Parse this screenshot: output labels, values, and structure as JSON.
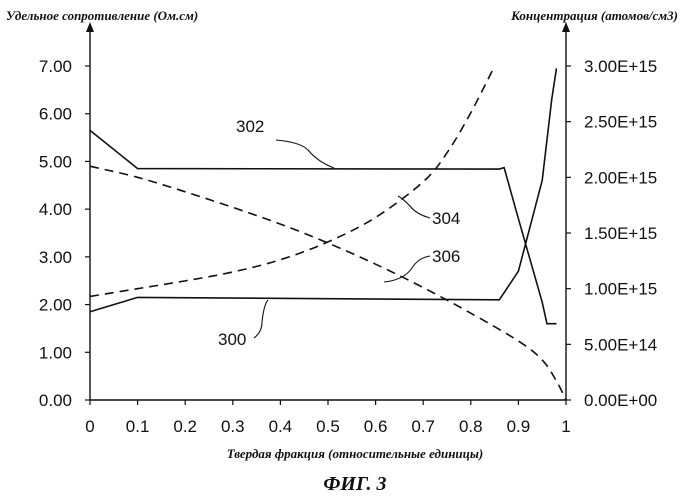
{
  "chart_data": {
    "type": "line",
    "xlabel": "Твердая фракция (относительные единицы)",
    "ylabel_left": "Удельное сопротивление (Ом.см)",
    "ylabel_right": "Концентрация (атомов/см3)",
    "caption": "ФИГ. 3",
    "x_ticks": [
      "0",
      "0.1",
      "0.2",
      "0.3",
      "0.4",
      "0.5",
      "0.6",
      "0.7",
      "0.8",
      "0.9",
      "1"
    ],
    "y_left_ticks": [
      "0.00",
      "1.00",
      "2.00",
      "3.00",
      "4.00",
      "5.00",
      "6.00",
      "7.00"
    ],
    "y_right_ticks": [
      "0.00E+00",
      "5.00E+14",
      "1.00E+15",
      "1.50E+15",
      "2.00E+15",
      "2.50E+15",
      "3.00E+15"
    ],
    "xlim": [
      0,
      1
    ],
    "ylim_left": [
      0,
      7
    ],
    "ylim_right": [
      0,
      3000000000000000.0
    ],
    "grid": false,
    "series": [
      {
        "name": "300",
        "axis": "left",
        "style": "solid",
        "x": [
          0,
          0.1,
          0.86,
          0.9,
          0.95,
          0.97,
          0.98
        ],
        "y": [
          1.85,
          2.15,
          2.1,
          2.7,
          4.6,
          6.3,
          6.95
        ]
      },
      {
        "name": "302",
        "axis": "left",
        "style": "solid",
        "x": [
          0,
          0.1,
          0.86,
          0.87,
          0.9,
          0.95,
          0.96,
          0.98
        ],
        "y": [
          5.65,
          4.85,
          4.84,
          4.87,
          3.8,
          2.05,
          1.6,
          1.6
        ]
      },
      {
        "name": "304",
        "axis": "right",
        "style": "dashed",
        "x": [
          0,
          0.1,
          0.2,
          0.3,
          0.4,
          0.5,
          0.6,
          0.7,
          0.8,
          0.9,
          0.95,
          0.98,
          1.0
        ],
        "y": [
          2100000000000000.0,
          2000000000000000.0,
          1870000000000000.0,
          1730000000000000.0,
          1580000000000000.0,
          1410000000000000.0,
          1220000000000000.0,
          1010000000000000.0,
          780000000000000.0,
          530000000000000.0,
          360000000000000.0,
          170000000000000.0,
          0
        ]
      },
      {
        "name": "306",
        "axis": "right",
        "style": "dashed",
        "x": [
          0,
          0.1,
          0.2,
          0.3,
          0.4,
          0.5,
          0.6,
          0.7,
          0.75,
          0.8,
          0.85
        ],
        "y": [
          930000000000000.0,
          1000000000000000.0,
          1070000000000000.0,
          1150000000000000.0,
          1260000000000000.0,
          1420000000000000.0,
          1640000000000000.0,
          1960000000000000.0,
          2220000000000000.0,
          2580000000000000.0,
          3000000000000000.0
        ]
      }
    ],
    "callouts": [
      {
        "label": "300",
        "series": "300"
      },
      {
        "label": "302",
        "series": "302"
      },
      {
        "label": "304",
        "series": "304"
      },
      {
        "label": "306",
        "series": "306"
      }
    ]
  }
}
